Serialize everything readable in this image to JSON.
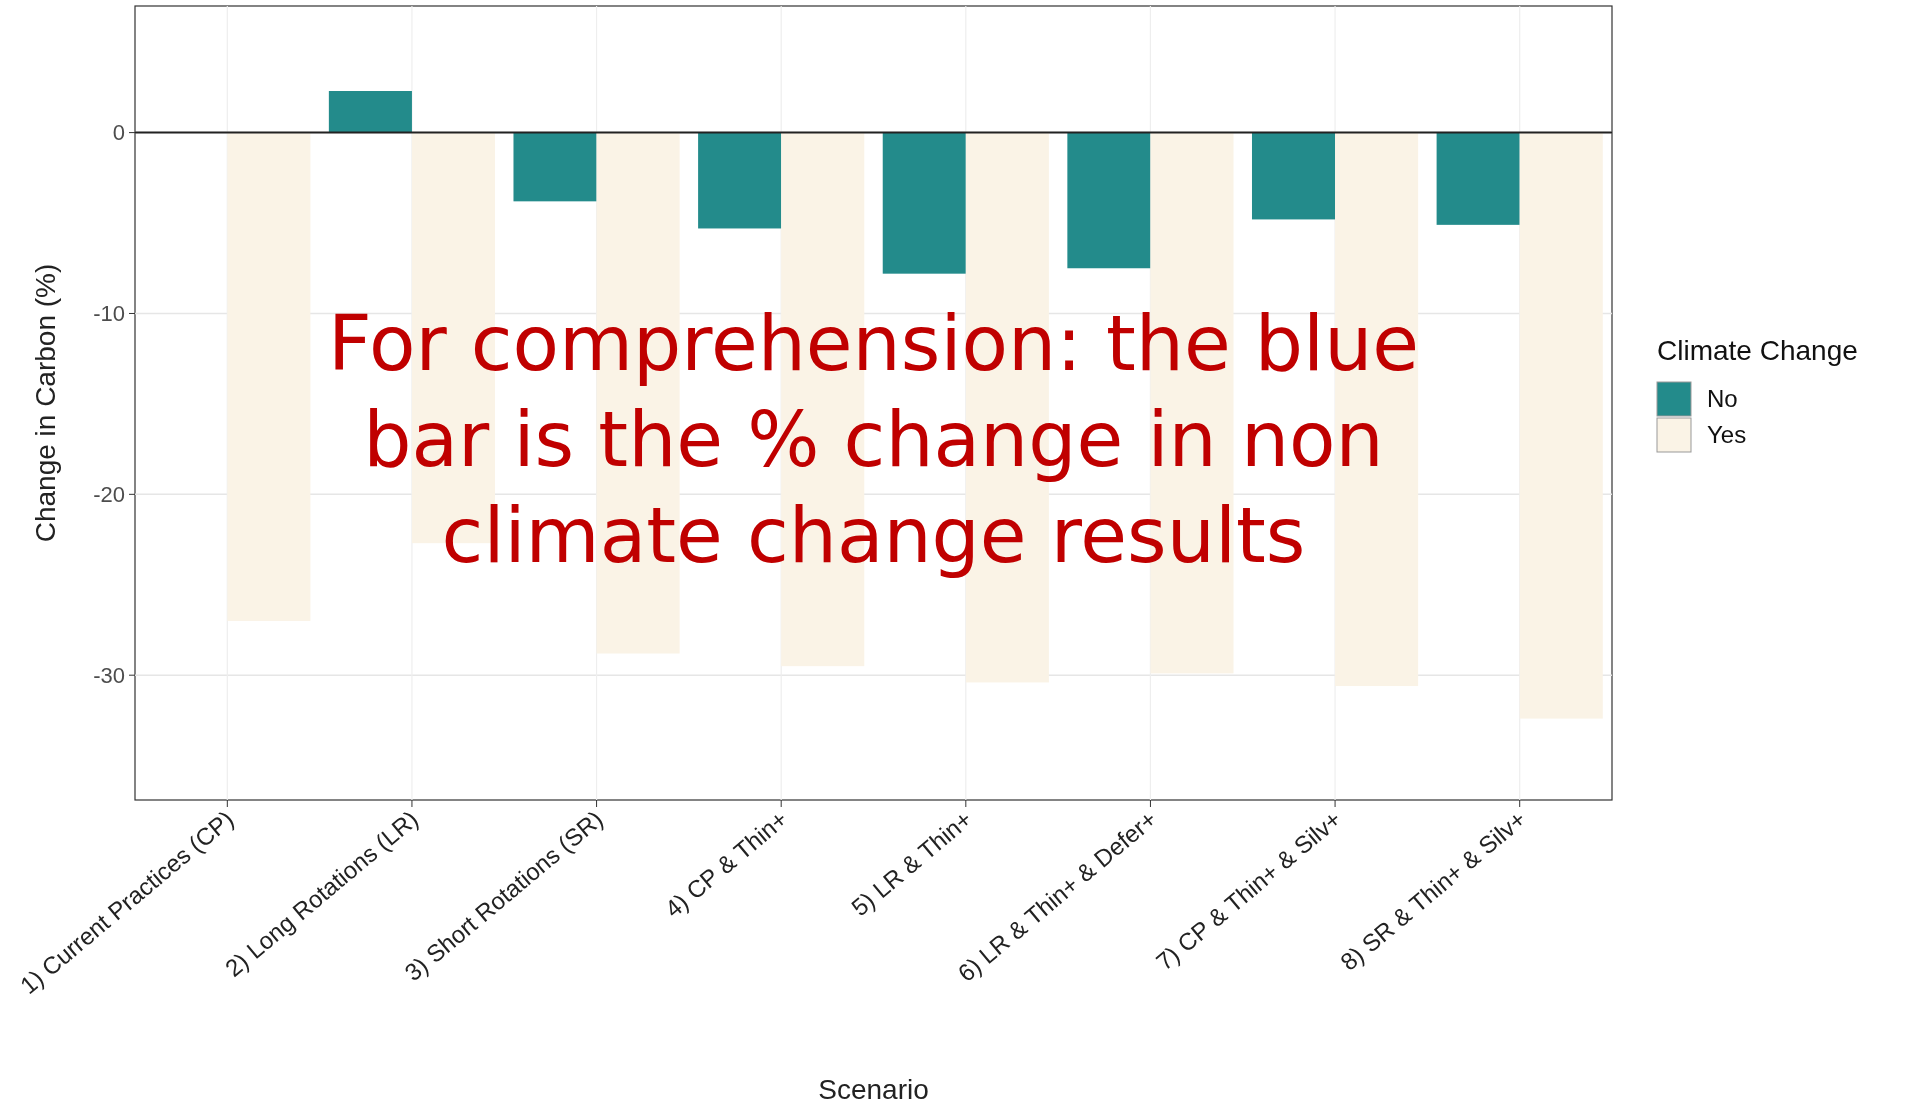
{
  "chart_data": {
    "type": "bar",
    "xlabel": "Scenario",
    "ylabel": "Change in Carbon (%)",
    "legend_title": "Climate Change",
    "categories": [
      "1) Current Practices (CP)",
      "2) Long Rotations (LR)",
      "3) Short Rotations (SR)",
      "4) CP & Thin+",
      "5) LR & Thin+",
      "6) LR & Thin+ & Defer+",
      "7) CP & Thin+ & Silv+",
      "8) SR & Thin+ & Silv+"
    ],
    "series": [
      {
        "name": "No",
        "color": "#238b8b",
        "values": [
          0,
          2.3,
          -3.8,
          -5.3,
          -7.8,
          -7.5,
          -4.8,
          -5.1
        ]
      },
      {
        "name": "Yes",
        "color": "#faf3e6",
        "values": [
          -27.0,
          -22.7,
          -28.8,
          -29.5,
          -30.4,
          -29.9,
          -30.6,
          -32.4
        ]
      }
    ],
    "ylim": [
      -36.9,
      7
    ],
    "yticks": [
      0,
      -10,
      -20,
      -30
    ],
    "grid": true,
    "legend": "right",
    "annotations": [
      "For comprehension: the blue bar is the % change in non climate change results"
    ]
  }
}
